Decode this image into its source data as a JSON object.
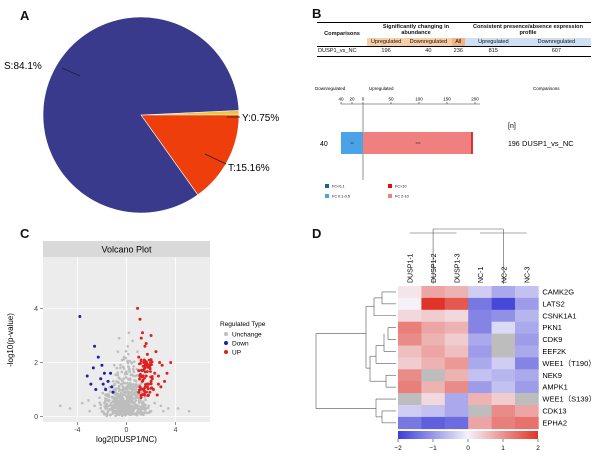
{
  "colors": {
    "pie_S": "#3a3a8c",
    "pie_T": "#ee3e0c",
    "pie_Y": "#f2c43a",
    "down_bar": "#4aa3e6",
    "up_bar": "#f08080",
    "volcano_down": "#1f1fa0",
    "volcano_up": "#e02020",
    "volcano_unchange": "#bdbdbd"
  },
  "panel_letters": {
    "a": "A",
    "b": "B",
    "c": "C",
    "d": "D"
  },
  "panelB": {
    "table": {
      "col_comparisons": "Comparisons",
      "group1": "Significantly changing in abundance",
      "group2": "Consistent presence/absence expression profile",
      "subheaders": [
        "Upregulated",
        "Downregulated",
        "All",
        "Upregulated",
        "Downregulated"
      ],
      "row": {
        "name": "DUSP1_vs_NC",
        "values": [
          "196",
          "40",
          "236",
          "815",
          "607"
        ]
      }
    },
    "bar": {
      "label_down": "Downregulated",
      "label_up": "Upregulated",
      "label_n": "[n]",
      "label_comparisons": "Comparisons",
      "left_count": "40",
      "right_count": "196",
      "comparison_name": "DUSP1_vs_NC",
      "inner_down": "40",
      "inner_up": "196",
      "legend": [
        "FC<0.1",
        "FC 0.1-0.5",
        "FC>10",
        "FC 2-10"
      ]
    }
  },
  "chart_data": [
    {
      "type": "pie",
      "panel": "A",
      "slices": [
        {
          "label": "S",
          "value": 84.1,
          "text": "S:84.1%"
        },
        {
          "label": "T",
          "value": 15.16,
          "text": "T:15.16%"
        },
        {
          "label": "Y",
          "value": 0.75,
          "text": "Y:0.75%"
        }
      ]
    },
    {
      "type": "bar",
      "panel": "B",
      "orientation": "horizontal",
      "categories": [
        "DUSP1_vs_NC"
      ],
      "series": [
        {
          "name": "Downregulated",
          "values": [
            40
          ]
        },
        {
          "name": "Upregulated",
          "values": [
            196
          ]
        }
      ],
      "axis_ticks": [
        "40",
        "20",
        "0",
        "50",
        "100",
        "150",
        "200"
      ],
      "xlim_down": [
        0,
        40
      ],
      "xlim_up": [
        0,
        200
      ]
    },
    {
      "type": "scatter",
      "panel": "C",
      "title": "Volcano Plot",
      "xlabel": "log2(DUSP1/NC)",
      "ylabel": "-log10(p-value)",
      "xlim": [
        -6.8,
        6.8
      ],
      "ylim": [
        -0.2,
        5.9
      ],
      "xticks": [
        -4,
        0,
        4
      ],
      "yticks": [
        0,
        2,
        4
      ],
      "legend_title": "Regulated Type",
      "legend": [
        "Unchange",
        "Down",
        "UP"
      ],
      "up_points": [
        [
          0.9,
          4.0
        ],
        [
          1.1,
          3.6
        ],
        [
          1.3,
          3.1
        ],
        [
          1.5,
          2.6
        ],
        [
          1.2,
          2.9
        ],
        [
          1.7,
          2.3
        ],
        [
          2.0,
          2.1
        ],
        [
          1.4,
          2.0
        ],
        [
          1.9,
          1.8
        ],
        [
          2.3,
          1.6
        ],
        [
          1.0,
          1.7
        ],
        [
          1.6,
          1.5
        ],
        [
          2.6,
          1.5
        ],
        [
          2.8,
          1.1
        ],
        [
          1.3,
          1.3
        ],
        [
          1.8,
          1.2
        ],
        [
          2.2,
          1.0
        ],
        [
          1.1,
          1.1
        ],
        [
          3.1,
          1.3
        ],
        [
          3.6,
          2.0
        ],
        [
          2.4,
          2.4
        ],
        [
          2.0,
          3.0
        ],
        [
          2.9,
          1.9
        ],
        [
          1.5,
          0.9
        ],
        [
          1.9,
          0.9
        ],
        [
          1.2,
          0.8
        ],
        [
          2.5,
          0.8
        ],
        [
          2.7,
          2.0
        ],
        [
          1.6,
          2.7
        ],
        [
          1.0,
          2.2
        ],
        [
          1.4,
          1.0
        ],
        [
          2.1,
          1.4
        ],
        [
          3.3,
          1.6
        ],
        [
          1.8,
          1.9
        ],
        [
          1.1,
          1.5
        ],
        [
          1.7,
          1.1
        ],
        [
          2.0,
          1.3
        ],
        [
          1.3,
          1.7
        ],
        [
          2.6,
          1.2
        ],
        [
          1.0,
          0.9
        ]
      ],
      "down_points": [
        [
          -3.8,
          3.7
        ],
        [
          -2.6,
          2.6
        ],
        [
          -2.3,
          2.2
        ],
        [
          -2.0,
          1.9
        ],
        [
          -1.8,
          1.6
        ],
        [
          -2.9,
          1.2
        ],
        [
          -2.5,
          1.0
        ],
        [
          -1.5,
          1.3
        ],
        [
          -1.2,
          1.1
        ],
        [
          -3.2,
          1.5
        ],
        [
          -2.1,
          1.4
        ],
        [
          -1.7,
          1.0
        ],
        [
          -1.3,
          1.6
        ],
        [
          -2.7,
          1.8
        ],
        [
          -1.1,
          0.9
        ],
        [
          -1.9,
          1.2
        ]
      ],
      "unchange_points": [
        [
          -5.4,
          0.4
        ],
        [
          -4.6,
          0.3
        ],
        [
          -3.6,
          0.5
        ],
        [
          -3.1,
          0.6
        ],
        [
          -2.6,
          0.4
        ],
        [
          -2.2,
          0.7
        ],
        [
          -1.8,
          0.5
        ],
        [
          -1.4,
          0.6
        ],
        [
          -0.9,
          0.7
        ],
        [
          -0.6,
          0.5
        ],
        [
          -0.3,
          0.6
        ],
        [
          0.0,
          0.4
        ],
        [
          0.3,
          0.6
        ],
        [
          0.6,
          0.5
        ],
        [
          0.9,
          0.4
        ],
        [
          1.3,
          0.5
        ],
        [
          1.8,
          0.4
        ],
        [
          2.3,
          0.5
        ],
        [
          2.8,
          0.4
        ],
        [
          3.4,
          0.3
        ],
        [
          4.2,
          0.3
        ],
        [
          5.1,
          0.2
        ],
        [
          -0.8,
          1.3
        ],
        [
          -0.5,
          1.8
        ],
        [
          -0.2,
          2.2
        ],
        [
          0.1,
          2.6
        ],
        [
          0.4,
          2.0
        ],
        [
          0.7,
          1.5
        ],
        [
          -0.6,
          2.9
        ],
        [
          0.2,
          3.1
        ],
        [
          0.5,
          2.8
        ],
        [
          -0.3,
          1.1
        ],
        [
          0.0,
          1.0
        ],
        [
          0.6,
          1.1
        ],
        [
          -0.9,
          0.9
        ],
        [
          0.8,
          0.9
        ],
        [
          -1.2,
          0.3
        ],
        [
          1.1,
          0.2
        ],
        [
          -2.0,
          0.2
        ],
        [
          2.0,
          0.2
        ],
        [
          -3.0,
          0.2
        ],
        [
          3.0,
          0.2
        ],
        [
          -0.4,
          0.2
        ],
        [
          0.4,
          0.2
        ],
        [
          -0.1,
          1.6
        ],
        [
          0.3,
          1.4
        ],
        [
          -0.7,
          2.4
        ],
        [
          0.9,
          2.4
        ],
        [
          -1.0,
          1.9
        ],
        [
          0.0,
          0.1
        ]
      ]
    },
    {
      "type": "heatmap",
      "panel": "D",
      "columns": [
        "DUSP1-1",
        "DUSP1-2",
        "DUSP1-3",
        "NC-1",
        "NC-2",
        "NC-3"
      ],
      "rows": [
        "CAMK2G",
        "LATS2",
        "CSNK1A1",
        "PKN1",
        "CDK9",
        "EEF2K",
        "WEE1（T190）",
        "NEK9",
        "AMPK1",
        "WEE1（S139）",
        "CDK13",
        "EPHA2"
      ],
      "values": [
        [
          0.1,
          0.6,
          0.5,
          -0.3,
          -0.6,
          -0.4
        ],
        [
          0.0,
          1.8,
          1.2,
          -1.0,
          -1.4,
          -0.7
        ],
        [
          0.2,
          0.3,
          0.2,
          -0.9,
          -0.8,
          -0.5
        ],
        [
          0.9,
          0.6,
          0.5,
          -0.9,
          -0.2,
          -0.6
        ],
        [
          0.8,
          0.5,
          0.3,
          -0.6,
          null,
          -0.7
        ],
        [
          0.4,
          0.6,
          0.4,
          -0.7,
          null,
          -0.6
        ],
        [
          0.3,
          0.5,
          0.7,
          -0.6,
          -0.3,
          -0.9
        ],
        [
          0.8,
          null,
          0.5,
          -0.4,
          -0.5,
          -0.6
        ],
        [
          0.9,
          0.5,
          0.8,
          -0.7,
          -0.4,
          -0.7
        ],
        [
          null,
          0.2,
          -0.6,
          0.5,
          0.3,
          null
        ],
        [
          -0.3,
          -0.4,
          -0.6,
          null,
          0.8,
          0.6
        ],
        [
          -1.0,
          -1.2,
          -1.1,
          0.6,
          0.9,
          1.0
        ]
      ],
      "colorbar": {
        "min": -2,
        "max": 2,
        "ticks": [
          "−2",
          "−1",
          "0",
          "1",
          "2"
        ]
      }
    }
  ]
}
